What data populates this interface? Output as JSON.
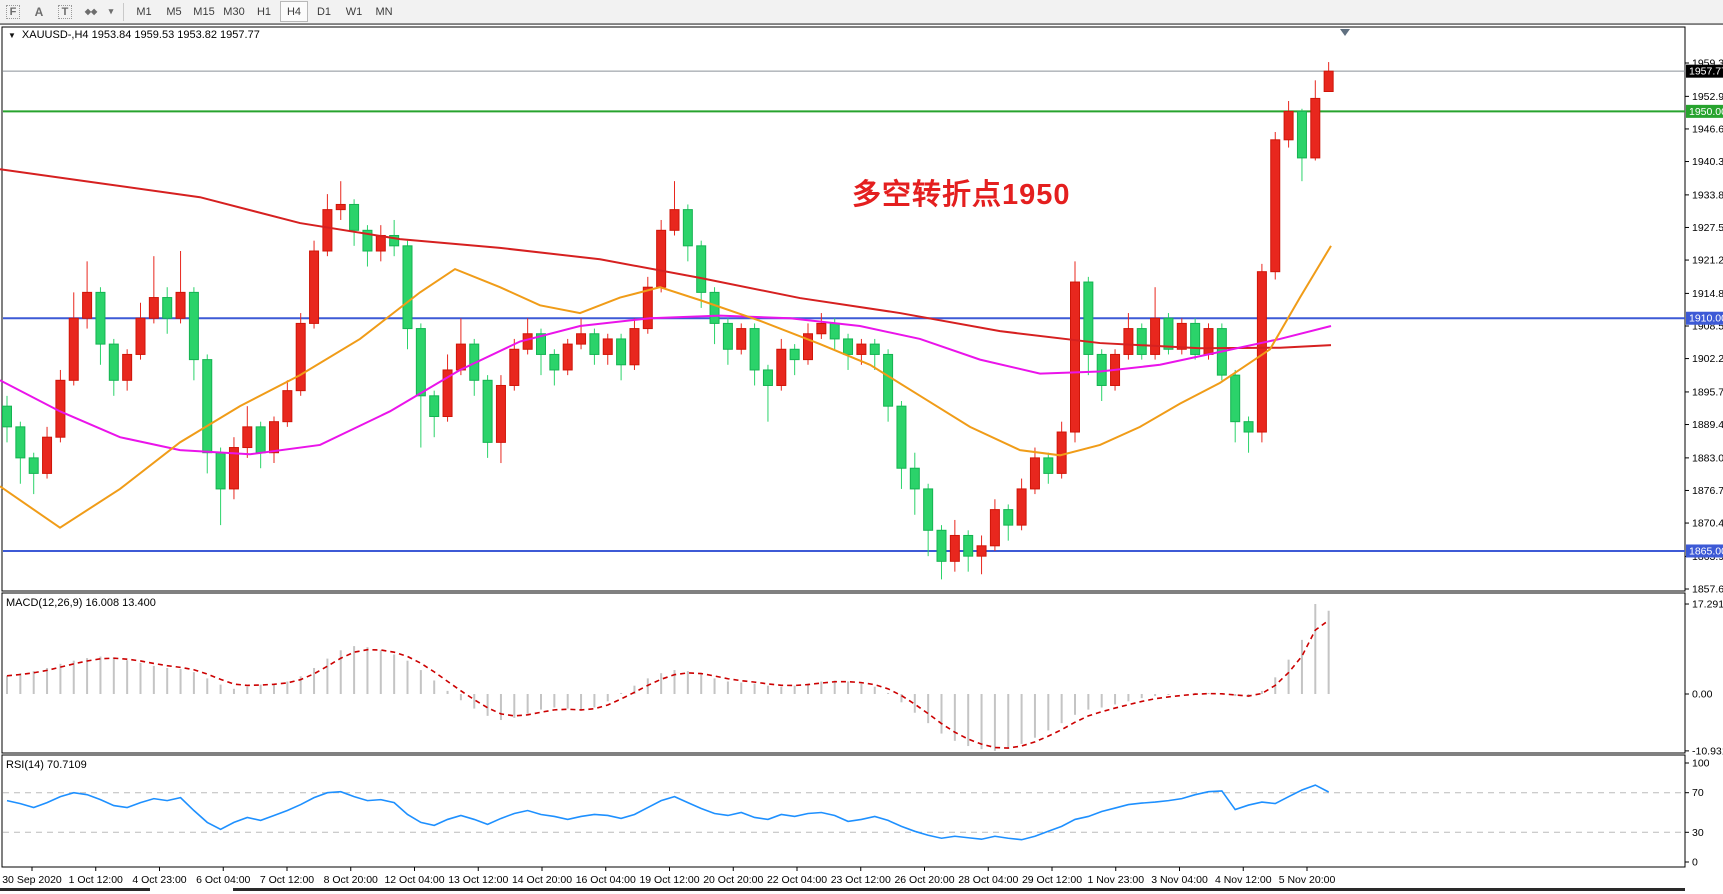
{
  "toolbar": {
    "icons": [
      {
        "name": "fibonacci-icon",
        "glyph": "F"
      },
      {
        "name": "text-icon",
        "glyph": "A"
      },
      {
        "name": "text-label-icon",
        "glyph": "T"
      },
      {
        "name": "arrows-icon",
        "glyph": "◆◆"
      },
      {
        "name": "dropdown-arrow-icon",
        "glyph": "▾"
      }
    ],
    "timeframes": [
      {
        "label": "M1",
        "active": false
      },
      {
        "label": "M5",
        "active": false
      },
      {
        "label": "M15",
        "active": false
      },
      {
        "label": "M30",
        "active": false
      },
      {
        "label": "H1",
        "active": false
      },
      {
        "label": "H4",
        "active": true
      },
      {
        "label": "D1",
        "active": false
      },
      {
        "label": "W1",
        "active": false
      },
      {
        "label": "MN",
        "active": false
      }
    ]
  },
  "title_bar": {
    "collapse_glyph": "▼",
    "text": "XAUUSD-,H4  1953.84 1959.53 1953.82 1957.77"
  },
  "annotation": {
    "text": "多空转折点1950",
    "color": "#e41f1f"
  },
  "chart_data": {
    "type": "candlestick",
    "symbol": "XAUUSD-",
    "period": "H4",
    "current_ohlc": {
      "open": 1953.84,
      "high": 1959.53,
      "low": 1953.82,
      "close": 1957.77
    },
    "price_panel": {
      "ylim": [
        1857.3,
        1966.0
      ],
      "yticks": [
        1959.35,
        1952.9,
        1946.6,
        1940.3,
        1933.85,
        1927.55,
        1921.25,
        1914.8,
        1908.5,
        1902.2,
        1895.75,
        1889.45,
        1883.0,
        1876.7,
        1870.4,
        1863.95,
        1857.65
      ],
      "hlines": [
        {
          "name": "current-price-line",
          "price": 1957.77,
          "color": "#8a9099",
          "width": 1,
          "badge": "1957.77",
          "badge_bg": "#000000"
        },
        {
          "name": "level-1950",
          "price": 1950.0,
          "color": "#27a32e",
          "width": 2,
          "badge": "1950.00",
          "badge_bg": "#27a32e"
        },
        {
          "name": "level-1910",
          "price": 1910.0,
          "color": "#3d5ad6",
          "width": 2,
          "badge": "1910.00",
          "badge_bg": "#3d5ad6"
        },
        {
          "name": "level-1865",
          "price": 1865.0,
          "color": "#3d5ad6",
          "width": 2,
          "badge": "1865.00",
          "badge_bg": "#3d5ad6"
        }
      ],
      "up_color": "#e8271e",
      "down_color": "#2bd36a",
      "candles": [
        [
          1893,
          1895,
          1886,
          1889
        ],
        [
          1889,
          1890,
          1878,
          1883
        ],
        [
          1883,
          1884,
          1876,
          1880
        ],
        [
          1880,
          1889,
          1879,
          1887
        ],
        [
          1887,
          1900,
          1886,
          1898
        ],
        [
          1898,
          1915,
          1897,
          1910
        ],
        [
          1910,
          1921,
          1908,
          1915
        ],
        [
          1915,
          1916,
          1901,
          1905
        ],
        [
          1905,
          1906,
          1895,
          1898
        ],
        [
          1898,
          1904,
          1896,
          1903
        ],
        [
          1903,
          1913,
          1902,
          1910
        ],
        [
          1910,
          1922,
          1909,
          1914
        ],
        [
          1914,
          1916,
          1907,
          1910
        ],
        [
          1910,
          1923,
          1909,
          1915
        ],
        [
          1915,
          1916,
          1898,
          1902
        ],
        [
          1902,
          1903,
          1880,
          1884
        ],
        [
          1884,
          1885,
          1870,
          1877
        ],
        [
          1877,
          1887,
          1875,
          1885
        ],
        [
          1885,
          1893,
          1883,
          1889
        ],
        [
          1889,
          1890,
          1881,
          1884
        ],
        [
          1884,
          1891,
          1882,
          1890
        ],
        [
          1890,
          1898,
          1889,
          1896
        ],
        [
          1896,
          1911,
          1895,
          1909
        ],
        [
          1909,
          1925,
          1908,
          1923
        ],
        [
          1923,
          1934,
          1922,
          1931
        ],
        [
          1931,
          1936.5,
          1929,
          1932
        ],
        [
          1932,
          1933,
          1924,
          1927
        ],
        [
          1927,
          1928,
          1920,
          1923
        ],
        [
          1923,
          1928,
          1921,
          1926
        ],
        [
          1926,
          1929,
          1922,
          1924
        ],
        [
          1924,
          1925,
          1904,
          1908
        ],
        [
          1908,
          1909,
          1885,
          1895
        ],
        [
          1895,
          1896,
          1887,
          1891
        ],
        [
          1891,
          1903,
          1890,
          1900
        ],
        [
          1900,
          1910,
          1899,
          1905
        ],
        [
          1905,
          1906,
          1895,
          1898
        ],
        [
          1898,
          1899,
          1883,
          1886
        ],
        [
          1886,
          1899,
          1882,
          1897
        ],
        [
          1897,
          1906,
          1896,
          1904
        ],
        [
          1904,
          1910,
          1903,
          1907
        ],
        [
          1907,
          1908,
          1899,
          1903
        ],
        [
          1903,
          1904,
          1897,
          1900
        ],
        [
          1900,
          1906,
          1899,
          1905
        ],
        [
          1905,
          1910,
          1904,
          1907
        ],
        [
          1907,
          1908,
          1901,
          1903
        ],
        [
          1903,
          1907,
          1901,
          1906
        ],
        [
          1906,
          1907,
          1898,
          1901
        ],
        [
          1901,
          1910,
          1900,
          1908
        ],
        [
          1908,
          1918,
          1907,
          1916
        ],
        [
          1916,
          1929,
          1915,
          1927
        ],
        [
          1927,
          1936.5,
          1926,
          1931
        ],
        [
          1931,
          1932,
          1921,
          1924
        ],
        [
          1924,
          1925,
          1912,
          1915
        ],
        [
          1915,
          1916,
          1905,
          1909
        ],
        [
          1909,
          1910,
          1901,
          1904
        ],
        [
          1904,
          1909,
          1903,
          1908
        ],
        [
          1908,
          1909,
          1897,
          1900
        ],
        [
          1900,
          1901,
          1890,
          1897
        ],
        [
          1897,
          1906,
          1896,
          1904
        ],
        [
          1904,
          1905,
          1899,
          1902
        ],
        [
          1902,
          1909,
          1901,
          1907
        ],
        [
          1907,
          1911,
          1906,
          1909
        ],
        [
          1909,
          1910,
          1904,
          1906
        ],
        [
          1906,
          1907,
          1900,
          1903
        ],
        [
          1903,
          1906,
          1901,
          1905
        ],
        [
          1905,
          1906,
          1900,
          1903
        ],
        [
          1903,
          1904,
          1890,
          1893
        ],
        [
          1893,
          1894,
          1877,
          1881
        ],
        [
          1881,
          1884,
          1872,
          1877
        ],
        [
          1877,
          1878,
          1864,
          1869
        ],
        [
          1869,
          1870,
          1859.5,
          1863
        ],
        [
          1863,
          1871,
          1861,
          1868
        ],
        [
          1868,
          1869,
          1861,
          1864
        ],
        [
          1864,
          1868,
          1860.5,
          1866
        ],
        [
          1866,
          1875,
          1865,
          1873
        ],
        [
          1873,
          1874,
          1867,
          1870
        ],
        [
          1870,
          1879,
          1869,
          1877
        ],
        [
          1877,
          1885,
          1876,
          1883
        ],
        [
          1883,
          1884,
          1878,
          1880
        ],
        [
          1880,
          1890,
          1879,
          1888
        ],
        [
          1888,
          1921,
          1886,
          1917
        ],
        [
          1917,
          1918,
          1899,
          1903
        ],
        [
          1903,
          1904,
          1894,
          1897
        ],
        [
          1897,
          1904,
          1896,
          1903
        ],
        [
          1903,
          1911,
          1902,
          1908
        ],
        [
          1908,
          1909,
          1902,
          1903
        ],
        [
          1903,
          1916,
          1902,
          1910
        ],
        [
          1910,
          1911,
          1903,
          1904
        ],
        [
          1904,
          1910,
          1903,
          1909
        ],
        [
          1909,
          1910,
          1902,
          1903
        ],
        [
          1903,
          1909,
          1902,
          1908
        ],
        [
          1908,
          1909,
          1898,
          1899
        ],
        [
          1899,
          1900,
          1886,
          1890
        ],
        [
          1890,
          1891,
          1884,
          1888
        ],
        [
          1888,
          1920.5,
          1886,
          1919
        ],
        [
          1919,
          1946,
          1917.5,
          1944.5
        ],
        [
          1944.5,
          1952,
          1943,
          1950
        ],
        [
          1950,
          1950.5,
          1936.5,
          1941
        ],
        [
          1941,
          1956,
          1940.5,
          1952.5
        ],
        [
          1953.84,
          1959.53,
          1953.82,
          1957.77
        ]
      ],
      "ma_lines": [
        {
          "name": "ma-slow-red",
          "color": "#d62020",
          "width": 2,
          "points": [
            [
              0,
              1938.8
            ],
            [
              100,
              1936.1
            ],
            [
              200,
              1933.4
            ],
            [
              300,
              1928.4
            ],
            [
              400,
              1925.3
            ],
            [
              500,
              1923.6
            ],
            [
              600,
              1921.4
            ],
            [
              700,
              1917.8
            ],
            [
              800,
              1913.9
            ],
            [
              900,
              1911.0
            ],
            [
              1000,
              1907.5
            ],
            [
              1100,
              1905.2
            ],
            [
              1200,
              1904.2
            ],
            [
              1280,
              1904.3
            ],
            [
              1331,
              1904.8
            ]
          ]
        },
        {
          "name": "ma-mid-magenta",
          "color": "#ea14ea",
          "width": 2,
          "points": [
            [
              0,
              1898
            ],
            [
              60,
              1892
            ],
            [
              120,
              1887
            ],
            [
              180,
              1884.5
            ],
            [
              250,
              1883.7
            ],
            [
              320,
              1885.5
            ],
            [
              390,
              1892
            ],
            [
              460,
              1900
            ],
            [
              520,
              1905.5
            ],
            [
              580,
              1908.5
            ],
            [
              650,
              1910
            ],
            [
              720,
              1910.5
            ],
            [
              790,
              1910
            ],
            [
              860,
              1908.5
            ],
            [
              920,
              1906
            ],
            [
              980,
              1902
            ],
            [
              1040,
              1899.3
            ],
            [
              1100,
              1899.7
            ],
            [
              1160,
              1901
            ],
            [
              1220,
              1903.5
            ],
            [
              1280,
              1906
            ],
            [
              1331,
              1908.5
            ]
          ]
        },
        {
          "name": "ma-fast-orange",
          "color": "#f09c18",
          "width": 2,
          "points": [
            [
              0,
              1877.5
            ],
            [
              60,
              1869.5
            ],
            [
              120,
              1877
            ],
            [
              180,
              1886
            ],
            [
              240,
              1893
            ],
            [
              300,
              1899
            ],
            [
              360,
              1906
            ],
            [
              420,
              1915
            ],
            [
              455,
              1919.5
            ],
            [
              500,
              1916
            ],
            [
              540,
              1912.5
            ],
            [
              580,
              1911
            ],
            [
              620,
              1914
            ],
            [
              660,
              1916
            ],
            [
              700,
              1913.5
            ],
            [
              760,
              1909.5
            ],
            [
              820,
              1905
            ],
            [
              870,
              1901
            ],
            [
              920,
              1895
            ],
            [
              970,
              1889
            ],
            [
              1020,
              1884.5
            ],
            [
              1060,
              1883.5
            ],
            [
              1100,
              1885.5
            ],
            [
              1140,
              1889
            ],
            [
              1180,
              1893.5
            ],
            [
              1220,
              1897.5
            ],
            [
              1270,
              1904
            ],
            [
              1300,
              1914
            ],
            [
              1331,
              1924
            ]
          ]
        }
      ],
      "shift_marker": {
        "x": 1345,
        "glyph": "triangle-down"
      }
    },
    "macd_panel": {
      "label": "MACD(12,26,9) 16.008 13.400",
      "main_value": 16.008,
      "signal_value": 13.4,
      "yticks": [
        17.291,
        0.0,
        -10.931
      ],
      "histogram_color": "#c4c4c4",
      "signal_color": "#cc0000",
      "values": [
        3.5,
        4.0,
        4.4,
        5.0,
        5.8,
        6.4,
        6.9,
        7.2,
        7.0,
        6.5,
        6.0,
        5.4,
        5.0,
        4.8,
        4.2,
        3.0,
        1.8,
        1.0,
        1.4,
        1.8,
        2.0,
        2.4,
        3.4,
        5.0,
        6.8,
        8.4,
        9.2,
        9.0,
        8.4,
        7.6,
        6.4,
        4.6,
        2.6,
        0.6,
        -1.2,
        -2.8,
        -4.2,
        -5.0,
        -4.6,
        -3.8,
        -3.0,
        -2.6,
        -2.8,
        -3.2,
        -2.6,
        -1.4,
        0.2,
        1.6,
        3.0,
        4.0,
        4.6,
        4.4,
        3.8,
        3.0,
        2.4,
        2.2,
        2.0,
        1.6,
        1.4,
        1.6,
        2.0,
        2.4,
        2.6,
        2.4,
        2.0,
        1.4,
        0.2,
        -1.6,
        -3.6,
        -5.6,
        -7.6,
        -9.0,
        -10.0,
        -10.6,
        -10.931,
        -10.5,
        -9.6,
        -8.4,
        -7.0,
        -5.6,
        -4.0,
        -3.0,
        -2.6,
        -2.0,
        -1.4,
        -0.8,
        -0.4,
        -0.2,
        0.0,
        0.2,
        0.2,
        0.0,
        -0.4,
        -0.6,
        0.6,
        3.2,
        6.6,
        10.4,
        17.291,
        16.008
      ]
    },
    "rsi_panel": {
      "label": "RSI(14) 70.7109",
      "value": 70.7109,
      "yticks": [
        100,
        70,
        30,
        0
      ],
      "levels": [
        70,
        30
      ],
      "line_color": "#1e90ff",
      "level_color": "#bbbbbb",
      "values": [
        62,
        59,
        55,
        60,
        66,
        70,
        68,
        63,
        57,
        55,
        60,
        64,
        62,
        65,
        52,
        40,
        33,
        40,
        45,
        42,
        47,
        52,
        58,
        65,
        70,
        71,
        66,
        62,
        63,
        60,
        48,
        40,
        37,
        43,
        47,
        43,
        38,
        44,
        49,
        52,
        48,
        46,
        43,
        46,
        48,
        47,
        44,
        48,
        55,
        62,
        66,
        60,
        54,
        49,
        47,
        50,
        45,
        43,
        48,
        46,
        49,
        50,
        47,
        41,
        43,
        46,
        42,
        36,
        31,
        27,
        24,
        26,
        24.5,
        23,
        26,
        24,
        22.5,
        26,
        31,
        36,
        43,
        46,
        51,
        54.5,
        58,
        59.5,
        60.5,
        62,
        64,
        68,
        71,
        71.8,
        53,
        57.5,
        60.5,
        59,
        66,
        72.7,
        77.7,
        70.7109
      ]
    },
    "xaxis": {
      "labels": [
        "30 Sep 2020",
        "1 Oct 12:00",
        "4 Oct 23:00",
        "6 Oct 04:00",
        "7 Oct 12:00",
        "8 Oct 20:00",
        "12 Oct 04:00",
        "13 Oct 12:00",
        "14 Oct 20:00",
        "16 Oct 04:00",
        "19 Oct 12:00",
        "20 Oct 20:00",
        "22 Oct 04:00",
        "23 Oct 12:00",
        "26 Oct 20:00",
        "28 Oct 04:00",
        "29 Oct 12:00",
        "1 Nov 23:00",
        "3 Nov 04:00",
        "4 Nov 12:00",
        "5 Nov 20:00"
      ]
    }
  }
}
